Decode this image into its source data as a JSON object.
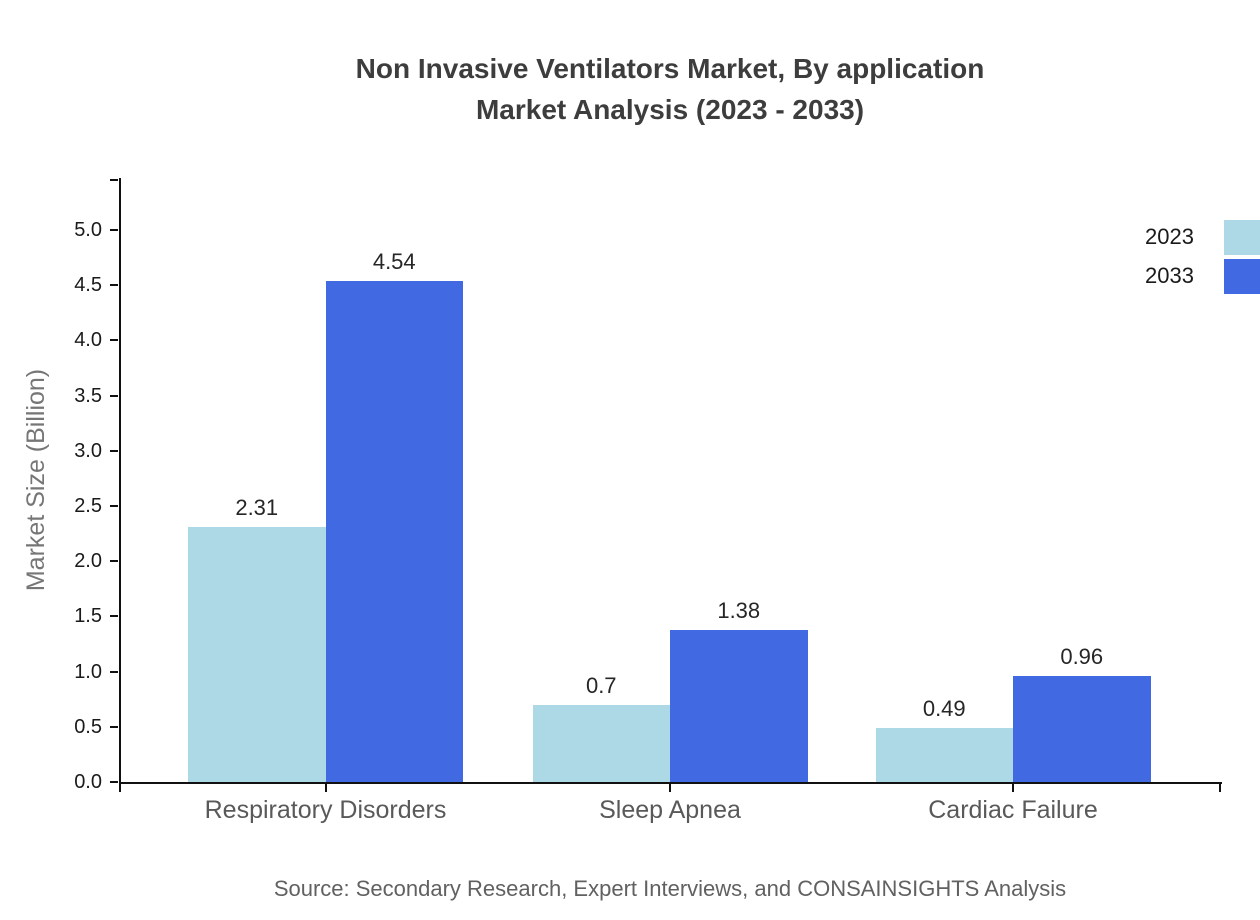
{
  "title": {
    "line1": "Non Invasive Ventilators Market, By application",
    "line2": "Market Analysis (2023 - 2033)"
  },
  "chart_data": {
    "type": "bar",
    "categories": [
      "Respiratory Disorders",
      "Sleep Apnea",
      "Cardiac Failure"
    ],
    "series": [
      {
        "name": "2023",
        "color": "#add8e6",
        "values": [
          2.31,
          0.7,
          0.49
        ],
        "labels": [
          "2.31",
          "0.7",
          "0.49"
        ]
      },
      {
        "name": "2033",
        "color": "#4169e1",
        "values": [
          4.54,
          1.38,
          0.96
        ],
        "labels": [
          "4.54",
          "1.38",
          "0.96"
        ]
      }
    ],
    "xlabel": "",
    "ylabel": "Market Size (Billion)",
    "ylim": [
      0,
      5.47
    ],
    "yticks": [
      0.0,
      0.5,
      1.0,
      1.5,
      2.0,
      2.5,
      3.0,
      3.5,
      4.0,
      4.5,
      5.0
    ],
    "ytick_labels": [
      "0.0",
      "0.5",
      "1.0",
      "1.5",
      "2.0",
      "2.5",
      "3.0",
      "3.5",
      "4.0",
      "4.5",
      "5.0"
    ],
    "grid": false,
    "legend_position": "top-right",
    "value_labels_shown": true
  },
  "legend": {
    "items": [
      {
        "label": "2023",
        "color": "#add8e6"
      },
      {
        "label": "2033",
        "color": "#4169e1"
      }
    ]
  },
  "source_note": "Source: Secondary Research, Expert Interviews, and CONSAINSIGHTS Analysis",
  "colors": {
    "series_2023": "#add8e6",
    "series_2033": "#4169e1",
    "axis": "#111111",
    "title_text": "#3d3d3d",
    "tick_text": "#1a1a1a",
    "category_text": "#595959",
    "axis_title_text": "#767676",
    "source_text": "#616161",
    "background": "#ffffff"
  }
}
